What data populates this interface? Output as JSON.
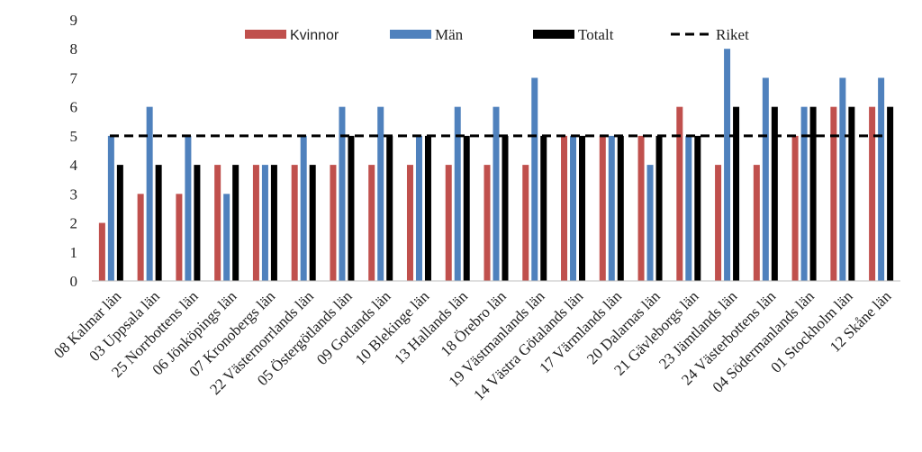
{
  "chart_data": {
    "type": "bar",
    "title": "",
    "xlabel": "",
    "ylabel": "",
    "ylim": [
      0,
      9
    ],
    "yticks": [
      0,
      1,
      2,
      3,
      4,
      5,
      6,
      7,
      8,
      9
    ],
    "grid": false,
    "legend_position": "top",
    "categories": [
      "08 Kalmar län",
      "03 Uppsala län",
      "25 Norrbottens län",
      "06 Jönköpings län",
      "07 Kronobergs län",
      "22 Västernorrlands län",
      "05 Östergötlands län",
      "09 Gotlands län",
      "10 Blekinge län",
      "13 Hallands län",
      "18 Örebro län",
      "19 Västmanlands län",
      "14 Västra Götalands län",
      "17 Värmlands län",
      "20 Dalarnas län",
      "21 Gävleborgs län",
      "23 Jämtlands län",
      "24 Västerbottens län",
      "04 Södermanlands län",
      "01 Stockholm län",
      "12 Skåne län"
    ],
    "series": [
      {
        "name": "Kvinnor",
        "color": "#c0504d",
        "values": [
          2,
          3,
          3,
          4,
          4,
          4,
          4,
          4,
          4,
          4,
          4,
          4,
          5,
          5,
          5,
          6,
          4,
          4,
          5,
          6,
          6
        ]
      },
      {
        "name": "Män",
        "color": "#4f81bd",
        "values": [
          5,
          6,
          5,
          3,
          4,
          5,
          6,
          6,
          5,
          6,
          6,
          7,
          5,
          5,
          4,
          5,
          8,
          7,
          6,
          7,
          7
        ]
      },
      {
        "name": "Totalt",
        "color": "#000000",
        "values": [
          4,
          4,
          4,
          4,
          4,
          4,
          5,
          5,
          5,
          5,
          5,
          5,
          5,
          5,
          5,
          5,
          6,
          6,
          6,
          6,
          6
        ]
      }
    ],
    "reference_line": {
      "name": "Riket",
      "value": 5,
      "style": "dashed",
      "color": "#000000"
    }
  }
}
